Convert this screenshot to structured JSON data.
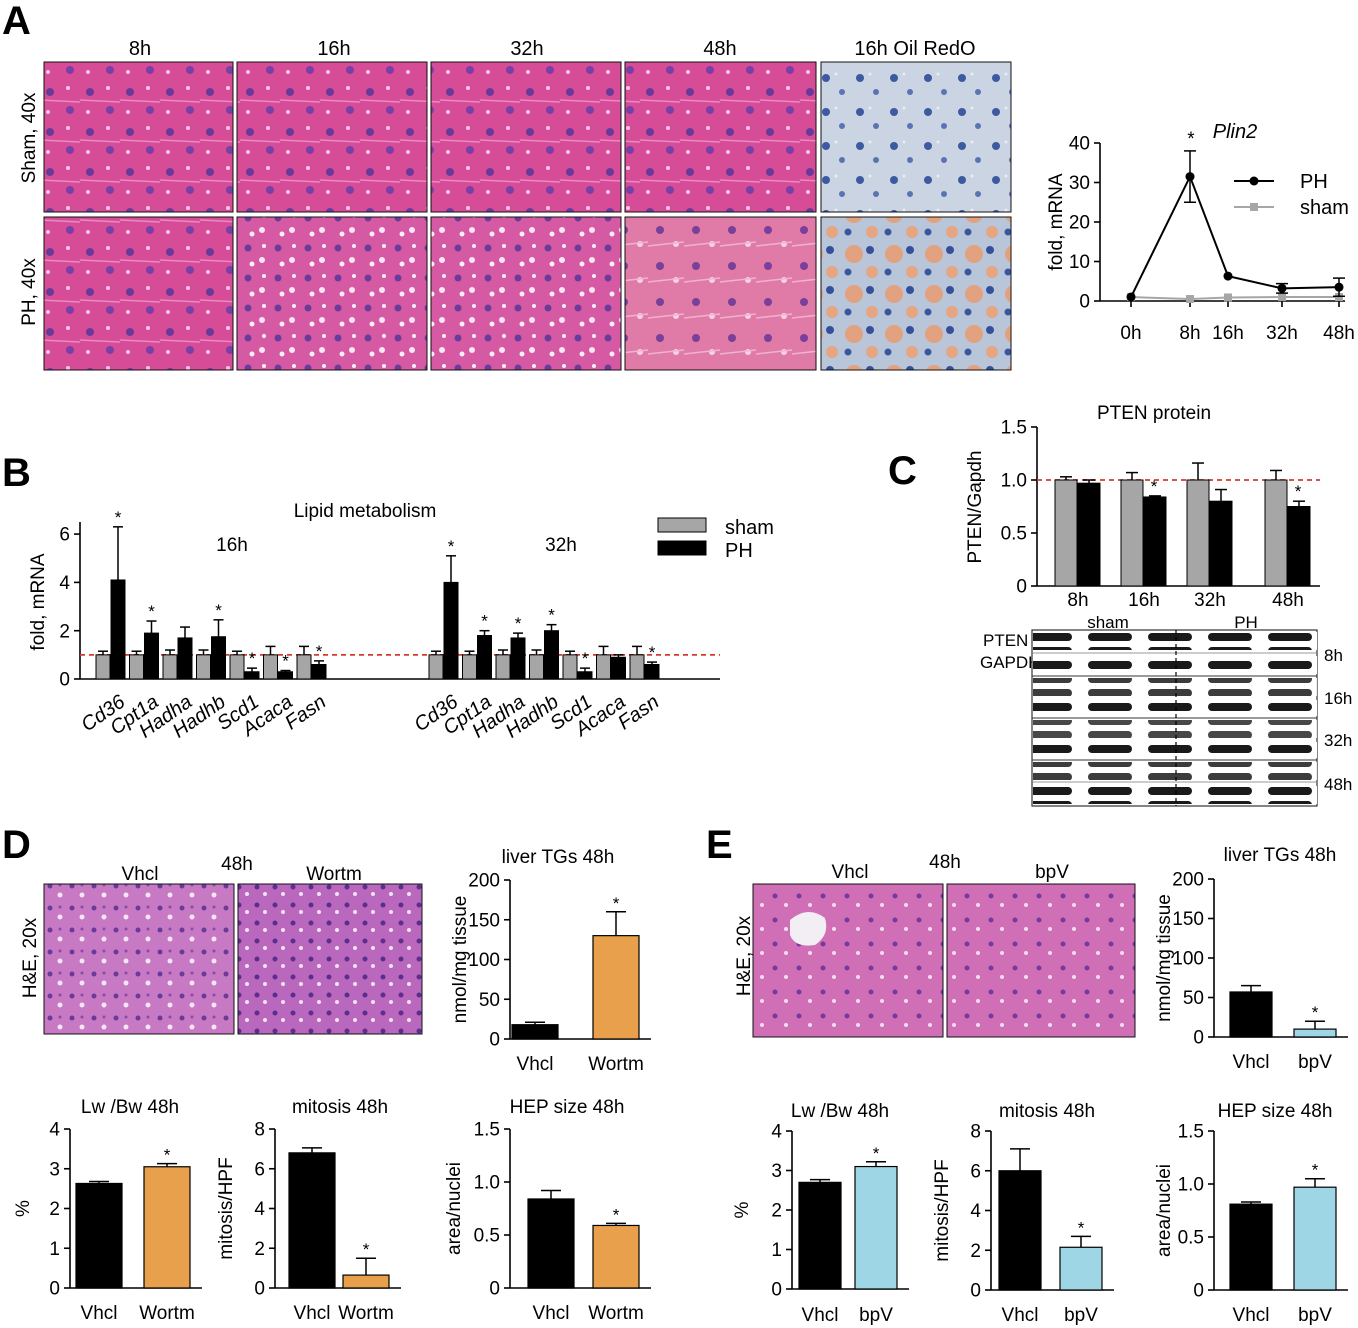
{
  "panel_labels": [
    "A",
    "B",
    "C",
    "D",
    "E"
  ],
  "colors": {
    "sham_bar": "#a6a6a6",
    "ph_bar": "#000000",
    "wortm": "#e8a04c",
    "bpv": "#9fd6e6",
    "he_pink": "#d44a94",
    "he_pale": "#d987c6",
    "oil_blue": "#c5d0e0",
    "oil_red": "#e6a07f",
    "dashed": "#d73a2a"
  },
  "panel_a": {
    "columns": [
      "8h",
      "16h",
      "32h",
      "48h",
      "16h Oil RedO"
    ],
    "rows": [
      "Sham, 40x",
      "PH, 40x"
    ]
  },
  "panel_d": {
    "time_label": "48h",
    "image_labels": [
      "Vhcl",
      "Wortm"
    ],
    "row_label": "H&E, 20x"
  },
  "panel_e": {
    "time_label": "48h",
    "image_labels": [
      "Vhcl",
      "bpV"
    ],
    "row_label": "H&E, 20x"
  },
  "western": {
    "group_labels": [
      "sham",
      "PH"
    ],
    "row_labels": [
      "PTEN",
      "GAPDH"
    ],
    "time_labels": [
      "8h",
      "16h",
      "32h",
      "48h"
    ]
  },
  "chart_data": [
    {
      "id": "plin2",
      "type": "line",
      "title": "Plin2",
      "ylabel": "fold, mRNA",
      "x": [
        "0h",
        "8h",
        "16h",
        "32h",
        "48h"
      ],
      "ylim": [
        0,
        40
      ],
      "yticks": [
        "0",
        "10",
        "20",
        "30",
        "40"
      ],
      "series": [
        {
          "name": "PH",
          "values": [
            1,
            31.5,
            6.3,
            3.2,
            3.5
          ],
          "err": [
            0,
            6.5,
            0,
            1.2,
            2.3
          ],
          "color": "#000000"
        },
        {
          "name": "sham",
          "values": [
            1,
            0.5,
            0.9,
            1,
            1
          ],
          "err": [
            0,
            0,
            0,
            0,
            0
          ],
          "color": "#a6a6a6"
        }
      ],
      "annotations": [
        "*"
      ]
    },
    {
      "id": "lipid",
      "type": "bar",
      "title": "Lipid metabolism",
      "ylabel": "fold, mRNA",
      "group_titles": [
        "16h",
        "32h"
      ],
      "categories": [
        "Cd36",
        "Cpt1a",
        "Hadha",
        "Hadhb",
        "Scd1",
        "Acaca",
        "Fasn"
      ],
      "ylim": [
        0,
        6.5
      ],
      "yticks": [
        "0",
        "2",
        "4",
        "6"
      ],
      "series": [
        {
          "name": "sham",
          "values_16h": [
            1,
            1,
            1,
            1,
            1,
            1,
            1
          ],
          "err_16h": [
            0.15,
            0.15,
            0.2,
            0.2,
            0.15,
            0.35,
            0.35
          ],
          "values_32h": [
            1,
            1,
            1,
            1,
            1,
            1,
            1
          ],
          "err_32h": [
            0.15,
            0.15,
            0.2,
            0.2,
            0.15,
            0.35,
            0.35
          ]
        },
        {
          "name": "PH",
          "values_16h": [
            4.1,
            1.9,
            1.7,
            1.75,
            0.3,
            0.3,
            0.6
          ],
          "err_16h": [
            2.2,
            0.5,
            0.45,
            0.7,
            0.15,
            0.05,
            0.15
          ],
          "values_32h": [
            4,
            1.8,
            1.7,
            2,
            0.3,
            0.9,
            0.6
          ],
          "err_32h": [
            1.1,
            0.2,
            0.2,
            0.25,
            0.15,
            0.1,
            0.1
          ]
        }
      ],
      "stars_16h": [
        true,
        true,
        false,
        true,
        true,
        true,
        true
      ],
      "stars_32h": [
        true,
        true,
        true,
        true,
        true,
        false,
        true
      ],
      "reference_line": 1
    },
    {
      "id": "pten",
      "type": "bar",
      "title": "PTEN protein",
      "ylabel": "PTEN/Gapdh",
      "categories": [
        "8h",
        "16h",
        "32h",
        "48h"
      ],
      "ylim": [
        0,
        1.5
      ],
      "yticks": [
        "0",
        "0.5",
        "1.0",
        "1.5"
      ],
      "series": [
        {
          "name": "sham",
          "values": [
            1,
            1,
            1,
            1
          ],
          "err": [
            0.03,
            0.07,
            0.16,
            0.09
          ]
        },
        {
          "name": "PH",
          "values": [
            0.97,
            0.84,
            0.8,
            0.75
          ],
          "err": [
            0.03,
            0.01,
            0.11,
            0.05
          ]
        }
      ],
      "stars": [
        false,
        true,
        false,
        true
      ],
      "reference_line": 1
    },
    {
      "id": "d_tg",
      "type": "bar",
      "title": "liver TGs 48h",
      "ylabel": "nmol/mg tissue",
      "categories": [
        "Vhcl",
        "Wortm"
      ],
      "values": [
        18,
        130
      ],
      "err": [
        3,
        30
      ],
      "ylim": [
        0,
        200
      ],
      "yticks": [
        "0",
        "50",
        "100",
        "150",
        "200"
      ],
      "stars": [
        false,
        true
      ]
    },
    {
      "id": "d_lwbw",
      "type": "bar",
      "title": "Lw /Bw  48h",
      "ylabel": "%",
      "categories": [
        "Vhcl",
        "Wortm"
      ],
      "values": [
        2.63,
        3.05
      ],
      "err": [
        0.05,
        0.08
      ],
      "ylim": [
        0,
        4
      ],
      "yticks": [
        "0",
        "1",
        "2",
        "3",
        "4"
      ],
      "stars": [
        false,
        true
      ]
    },
    {
      "id": "d_mitosis",
      "type": "bar",
      "title": "mitosis 48h",
      "ylabel": "mitosis/HPF",
      "categories": [
        "Vhcl",
        "Wortm"
      ],
      "values": [
        6.8,
        0.65
      ],
      "err": [
        0.25,
        0.85
      ],
      "ylim": [
        0,
        8
      ],
      "yticks": [
        "0",
        "2",
        "4",
        "6",
        "8"
      ],
      "stars": [
        false,
        true
      ]
    },
    {
      "id": "d_hep",
      "type": "bar",
      "title": "HEP size 48h",
      "ylabel": "area/nuclei",
      "categories": [
        "Vhcl",
        "Wortm"
      ],
      "values": [
        0.84,
        0.59
      ],
      "err": [
        0.08,
        0.02
      ],
      "ylim": [
        0,
        1.5
      ],
      "yticks": [
        "0",
        "0.5",
        "1.0",
        "1.5"
      ],
      "stars": [
        false,
        true
      ]
    },
    {
      "id": "e_tg",
      "type": "bar",
      "title": "liver TGs 48h",
      "ylabel": "nmol/mg tissue",
      "categories": [
        "Vhcl",
        "bpV"
      ],
      "values": [
        57,
        10
      ],
      "err": [
        8,
        10
      ],
      "ylim": [
        0,
        200
      ],
      "yticks": [
        "0",
        "50",
        "100",
        "150",
        "200"
      ],
      "stars": [
        false,
        true
      ]
    },
    {
      "id": "e_lwbw",
      "type": "bar",
      "title": "Lw /Bw  48h",
      "ylabel": "%",
      "categories": [
        "Vhcl",
        "bpV"
      ],
      "values": [
        2.7,
        3.1
      ],
      "err": [
        0.07,
        0.12
      ],
      "ylim": [
        0,
        4
      ],
      "yticks": [
        "0",
        "1",
        "2",
        "3",
        "4"
      ],
      "stars": [
        false,
        true
      ]
    },
    {
      "id": "e_mitosis",
      "type": "bar",
      "title": "mitosis 48h",
      "ylabel": "mitosis/HPF",
      "categories": [
        "Vhcl",
        "bpV"
      ],
      "values": [
        6,
        2.15
      ],
      "err": [
        1.1,
        0.55
      ],
      "ylim": [
        0,
        8
      ],
      "yticks": [
        "0",
        "2",
        "4",
        "6",
        "8"
      ],
      "stars": [
        false,
        true
      ]
    },
    {
      "id": "e_hep",
      "type": "bar",
      "title": "HEP size 48h",
      "ylabel": "area/nuclei",
      "categories": [
        "Vhcl",
        "bpV"
      ],
      "values": [
        0.81,
        0.97
      ],
      "err": [
        0.02,
        0.08
      ],
      "ylim": [
        0,
        1.5
      ],
      "yticks": [
        "0",
        "0.5",
        "1.0",
        "1.5"
      ],
      "stars": [
        false,
        true
      ]
    }
  ]
}
